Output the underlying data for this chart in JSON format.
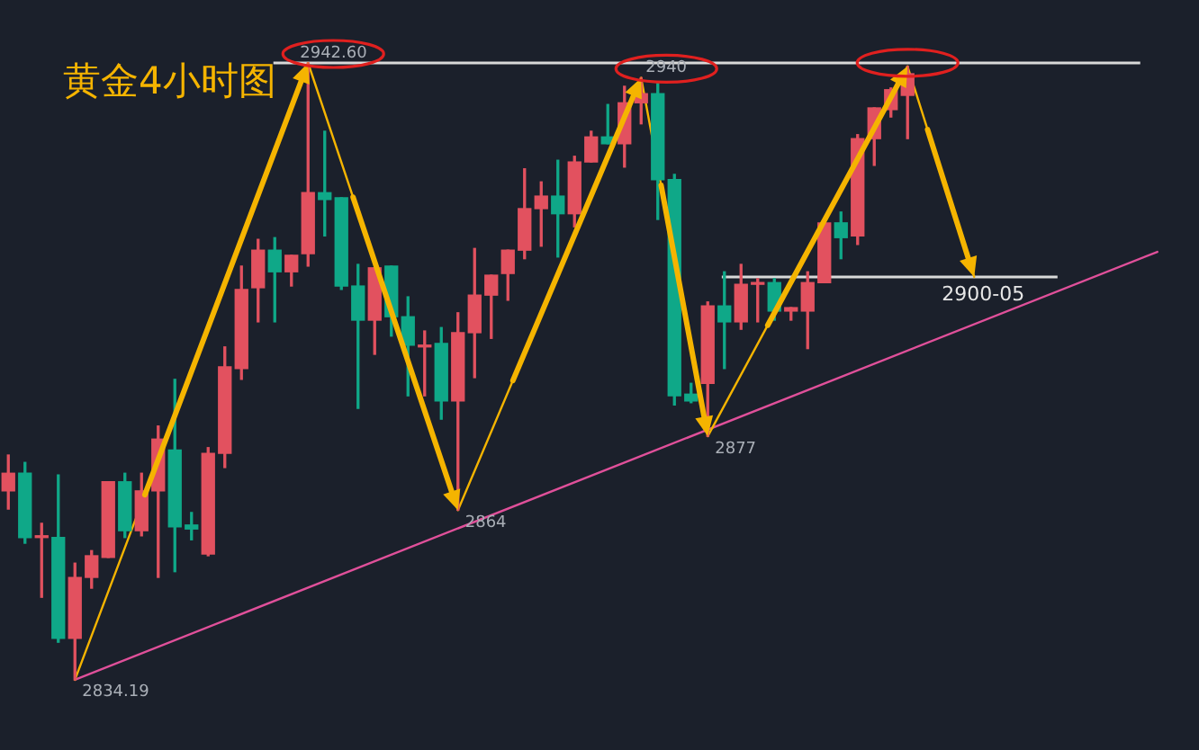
{
  "chart_data": {
    "type": "candlestick",
    "title": "黄金4小时图",
    "tick_labels": false,
    "categories": [
      null,
      null,
      null,
      null,
      null,
      null,
      null,
      null,
      null,
      null,
      null,
      null,
      null,
      null,
      null,
      null,
      null,
      null,
      null,
      null,
      null,
      null,
      null,
      null,
      null,
      null,
      null,
      null,
      null,
      null,
      null,
      null,
      null,
      null,
      null,
      null,
      null,
      null,
      null,
      null,
      null,
      null,
      null,
      null,
      null,
      null,
      null,
      null,
      null,
      null,
      null,
      null,
      null,
      null,
      null,
      null,
      null,
      null,
      null,
      null,
      null,
      null,
      null,
      null,
      null,
      null,
      null,
      null,
      null,
      null,
      null,
      null
    ],
    "ohlc": [
      [
        2867.4,
        2873.7,
        2864.2,
        2870.5
      ],
      [
        2870.5,
        2872.4,
        2858.2,
        2859.2
      ],
      [
        2859.2,
        2861.7,
        2848.7,
        2859.5
      ],
      [
        2859.2,
        2870.2,
        2840.8,
        2841.5
      ],
      [
        2841.5,
        2854.7,
        2834.19,
        2852.2
      ],
      [
        2852.2,
        2856.9,
        2850.3,
        2856.0
      ],
      [
        2855.7,
        2869.0,
        2855.7,
        2869.0
      ],
      [
        2869.0,
        2870.5,
        2859.2,
        2860.4
      ],
      [
        2860.4,
        2870.5,
        2859.5,
        2867.4
      ],
      [
        2867.4,
        2878.8,
        2852.2,
        2876.5
      ],
      [
        2874.6,
        2887.0,
        2853.2,
        2861.1
      ],
      [
        2861.4,
        2863.6,
        2858.8,
        2860.7
      ],
      [
        2856.3,
        2875.0,
        2856.0,
        2874.0
      ],
      [
        2874.0,
        2892.7,
        2871.5,
        2889.2
      ],
      [
        2888.9,
        2906.9,
        2887.0,
        2902.8
      ],
      [
        2903.1,
        2911.6,
        2897.1,
        2909.7
      ],
      [
        2909.7,
        2911.9,
        2897.1,
        2905.9
      ],
      [
        2905.9,
        2908.8,
        2903.4,
        2908.8
      ],
      [
        2909.1,
        2942.6,
        2906.9,
        2919.8
      ],
      [
        2919.8,
        2930.6,
        2912.2,
        2918.6
      ],
      [
        2918.9,
        2918.9,
        2902.8,
        2903.4
      ],
      [
        2903.4,
        2907.2,
        2881.9,
        2897.4
      ],
      [
        2897.4,
        2906.6,
        2891.4,
        2906.6
      ],
      [
        2906.9,
        2906.9,
        2894.6,
        2898.0
      ],
      [
        2898.0,
        2901.5,
        2884.1,
        2893.0
      ],
      [
        2892.7,
        2895.5,
        2884.1,
        2893.0
      ],
      [
        2893.3,
        2896.1,
        2880.0,
        2883.2
      ],
      [
        2883.2,
        2898.7,
        2864,
        2895.2
      ],
      [
        2895.2,
        2910.0,
        2887.3,
        2901.8
      ],
      [
        2901.8,
        2905.3,
        2894.2,
        2905.3
      ],
      [
        2905.6,
        2909.7,
        2900.9,
        2909.7
      ],
      [
        2909.7,
        2924.0,
        2908.2,
        2917.0
      ],
      [
        2917.0,
        2921.7,
        2910.4,
        2919.2
      ],
      [
        2919.2,
        2925.5,
        2908.5,
        2916.1
      ],
      [
        2916.1,
        2926.2,
        2913.8,
        2925.2
      ],
      [
        2925.2,
        2930.6,
        2925.2,
        2929.6
      ],
      [
        2929.6,
        2935.3,
        2928.4,
        2928.4
      ],
      [
        2928.4,
        2938.5,
        2924.3,
        2935.6
      ],
      [
        2935.6,
        2940,
        2931.9,
        2937.2
      ],
      [
        2937.2,
        2939.1,
        2915.1,
        2922.1
      ],
      [
        2922.1,
        2923.0,
        2882.5,
        2884.1
      ],
      [
        2884.4,
        2886.3,
        2882.9,
        2883.2
      ],
      [
        2886.3,
        2900.6,
        2877,
        2899.9
      ],
      [
        2899.9,
        2905.9,
        2888.9,
        2897.1
      ],
      [
        2897.1,
        2907.2,
        2895.8,
        2903.7
      ],
      [
        2903.7,
        2904.7,
        2897.1,
        2904.0
      ],
      [
        2904.0,
        2904.7,
        2897.4,
        2899.0
      ],
      [
        2899.0,
        2899.6,
        2897.4,
        2899.6
      ],
      [
        2899.0,
        2905.9,
        2892.4,
        2904.0
      ],
      [
        2904.0,
        2914.5,
        2904.0,
        2914.5
      ],
      [
        2914.5,
        2916.4,
        2908.2,
        2911.9
      ],
      [
        2912.2,
        2930.0,
        2910.7,
        2929.3
      ],
      [
        2929.3,
        2934.7,
        2924.6,
        2934.7
      ],
      [
        2934.4,
        2938.2,
        2933.1,
        2937.9
      ],
      [
        2936.9,
        2942.0,
        2929.3,
        2940.7
      ],
      null,
      null,
      null,
      null,
      null,
      null,
      null,
      null,
      null,
      null,
      null,
      null,
      null,
      null,
      null,
      null,
      null
    ],
    "colors": [
      "#e2515f",
      "#0fa888",
      "#e2515f",
      "#0fa888",
      "#e2515f",
      "#e2515f",
      "#e2515f",
      "#0fa888",
      "#e2515f",
      "#e2515f",
      "#0fa888",
      "#0fa888",
      "#e2515f",
      "#e2515f",
      "#e2515f",
      "#e2515f",
      "#0fa888",
      "#e2515f",
      "#e2515f",
      "#0fa888",
      "#0fa888",
      "#0fa888",
      "#e2515f",
      "#0fa888",
      "#0fa888",
      "#e2515f",
      "#0fa888",
      "#e2515f",
      "#e2515f",
      "#e2515f",
      "#e2515f",
      "#e2515f",
      "#e2515f",
      "#0fa888",
      "#e2515f",
      "#e2515f",
      "#0fa888",
      "#e2515f",
      "#e2515f",
      "#0fa888",
      "#0fa888",
      "#0fa888",
      "#e2515f",
      "#0fa888",
      "#e2515f",
      "#e2515f",
      "#0fa888",
      "#e2515f",
      "#e2515f",
      "#e2515f",
      "#0fa888",
      "#e2515f",
      "#e2515f",
      "#e2515f",
      "#e2515f",
      null,
      null,
      null,
      null,
      null,
      null,
      null,
      null,
      null,
      null,
      null,
      null,
      null,
      null,
      null,
      null,
      null
    ],
    "series": [
      {
        "type": "line",
        "color": "#f5b400",
        "values": [
          null,
          null,
          null,
          null,
          2834.2,
          null,
          null,
          null,
          null,
          null,
          null,
          null,
          null,
          null,
          null,
          null,
          null,
          null,
          2942.6,
          null,
          null,
          null,
          null,
          null,
          null,
          null,
          null,
          2864,
          null,
          null,
          null,
          null,
          null,
          null,
          null,
          null,
          null,
          null,
          2940,
          null,
          null,
          null,
          2877,
          null,
          null,
          null,
          null,
          null,
          null,
          null,
          null,
          null,
          null,
          null,
          2942.0,
          null,
          null,
          null,
          2905,
          null,
          null,
          null,
          null,
          null,
          null,
          null,
          null,
          null,
          null,
          null,
          null,
          null
        ]
      },
      {
        "type": "line",
        "color": "#e0509a",
        "values": [
          null,
          null,
          null,
          null,
          2834.2,
          null,
          null,
          null,
          null,
          null,
          null,
          null,
          null,
          null,
          null,
          null,
          null,
          null,
          null,
          null,
          null,
          null,
          null,
          null,
          null,
          null,
          null,
          null,
          null,
          null,
          null,
          null,
          null,
          null,
          null,
          null,
          null,
          null,
          null,
          null,
          null,
          null,
          null,
          null,
          null,
          null,
          null,
          null,
          null,
          null,
          null,
          null,
          null,
          null,
          null,
          null,
          null,
          null,
          null,
          null,
          null,
          null,
          null,
          null,
          null,
          null,
          null,
          null,
          null,
          2909.4,
          null,
          null
        ]
      }
    ],
    "ref_lines": [
      {
        "axis": "y",
        "value": 2942.6,
        "color": "#d9d9d9"
      },
      {
        "axis": "y",
        "value": 2905,
        "color": "#d9d9d9"
      }
    ],
    "annotations": [
      "2834.19",
      {
        "text": "2942.60",
        "y": 2942.6
      },
      {
        "text": "2864",
        "y": 2864
      },
      {
        "text": "2940",
        "y": 2940
      },
      "2877",
      "2900-05"
    ]
  }
}
